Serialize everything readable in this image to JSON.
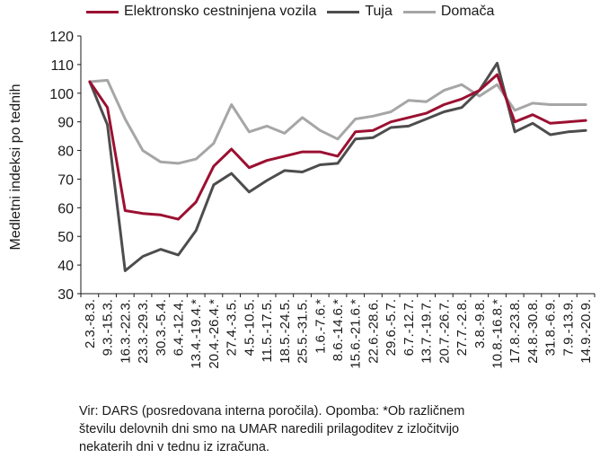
{
  "chart_data": {
    "type": "line",
    "ylabel": "Medletni indeksi po tednih",
    "ylim": [
      30,
      120
    ],
    "yticks": [
      30,
      40,
      50,
      60,
      70,
      80,
      90,
      100,
      110,
      120
    ],
    "grid": false,
    "legend_position": "top",
    "categories": [
      "2.3.-8.3.",
      "9.3.-15.3.",
      "16.3.-22.3.",
      "23.3.-29.3.",
      "30.3.-5.4.",
      "6.4.-12.4.",
      "13.4.-19.4.*",
      "20.4.-26.4.*",
      "27.4.-3.5.",
      "4.5.-10.5.",
      "11.5.-17.5.",
      "18.5.-24.5.",
      "25.5.-31.5.",
      "1.6.-7.6.*",
      "8.6.-14.6.*",
      "15.6.-21.6.*",
      "22.6.-28.6.",
      "29.6.-5.7.",
      "6.7.-12.7.",
      "13.7.-19.7.",
      "20.7.-26.7.",
      "27.7.-2.8.",
      "3.8.-9.8.",
      "10.8.-16.8.*",
      "17.8.-23.8.",
      "24.8.-30.8.",
      "31.8.-6.9.",
      "7.9.-13.9.",
      "14.9.-20.9."
    ],
    "series": [
      {
        "name": "Elektronsko cestninjena vozila",
        "color": "#9b1031",
        "values": [
          104,
          95,
          59,
          58,
          57.5,
          56,
          62,
          74.5,
          80.5,
          74,
          76.5,
          78,
          79.5,
          79.5,
          78,
          86.5,
          87,
          90,
          91.5,
          93,
          96,
          98,
          101,
          106.5,
          90,
          92.5,
          89.5,
          90,
          90.5
        ]
      },
      {
        "name": "Tuja",
        "color": "#4d4d4d",
        "values": [
          104,
          89,
          38,
          43,
          45.5,
          43.5,
          52,
          68,
          72,
          65.5,
          69.5,
          73,
          72.5,
          75,
          75.5,
          84,
          84.5,
          88,
          88.5,
          91,
          93.5,
          95,
          101,
          110.5,
          86.5,
          89.5,
          85.5,
          86.5,
          87
        ]
      },
      {
        "name": "Domača",
        "color": "#a6a6a6",
        "values": [
          104,
          104.5,
          91,
          80,
          76,
          75.5,
          77,
          82.5,
          96,
          86.5,
          88.5,
          86,
          91.5,
          87,
          84,
          91,
          92,
          93.5,
          97.5,
          97,
          101,
          103,
          99,
          103,
          94,
          96.5,
          96,
          96,
          96
        ]
      }
    ]
  },
  "source_lines": [
    "Vir: DARS (posredovana interna poročila). Opomba: *Ob različnem",
    "številu delovnih dni smo na UMAR naredili prilagoditev z izločitvijo",
    "nekaterih dni v tednu iz izračuna."
  ]
}
